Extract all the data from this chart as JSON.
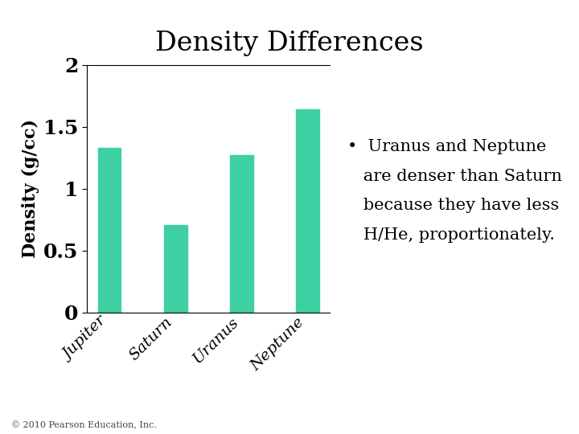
{
  "title": "Density Differences",
  "categories": [
    "Jupiter",
    "Saturn",
    "Uranus",
    "Neptune"
  ],
  "values": [
    1.33,
    0.71,
    1.27,
    1.64
  ],
  "bar_color": "#3ecfa3",
  "ylabel": "Density (g/cc)",
  "ylim": [
    0,
    2
  ],
  "yticks": [
    0,
    0.5,
    1,
    1.5,
    2
  ],
  "ytick_labels": [
    "0",
    "0.5",
    "1",
    "1.5",
    "2"
  ],
  "bullet": "•",
  "annotation_line1": "Uranus and Neptune",
  "annotation_line2": "are denser than Saturn",
  "annotation_line3": "because they have less",
  "annotation_line4": "H/He, proportionately.",
  "footnote": "© 2010 Pearson Education, Inc.",
  "title_fontsize": 24,
  "ylabel_fontsize": 16,
  "ytick_fontsize": 18,
  "xtick_fontsize": 14,
  "annotation_fontsize": 15,
  "footnote_fontsize": 8,
  "background_color": "#ffffff"
}
